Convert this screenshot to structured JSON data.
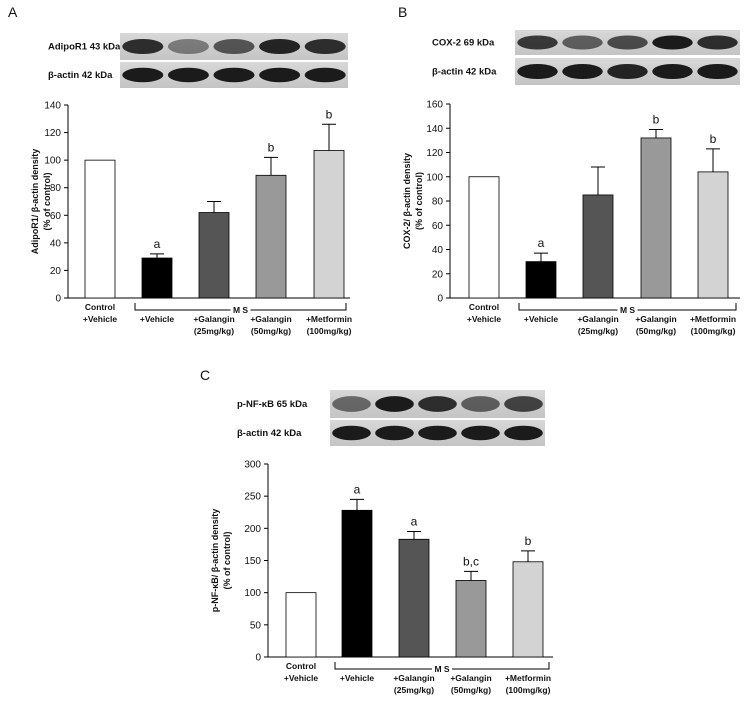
{
  "chart_data": [
    {
      "type": "bar",
      "panel": "A",
      "blots": [
        "AdipoR1 43 kDa",
        "β-actin 42 kDa"
      ],
      "ylabel": [
        "AdipoR1/ β-actin density",
        "(% of control)"
      ],
      "group_label": "M S",
      "categories": [
        [
          "Control",
          "+Vehicle"
        ],
        [
          "+Vehicle"
        ],
        [
          "+Galangin",
          "(25mg/kg)"
        ],
        [
          "+Galangin",
          "(50mg/kg)"
        ],
        [
          "+Metformin",
          "(100mg/kg)"
        ]
      ],
      "values": [
        100,
        29,
        62,
        89,
        107
      ],
      "errors": [
        null,
        3,
        8,
        13,
        19
      ],
      "letters": [
        null,
        "a",
        null,
        "b",
        "b"
      ],
      "colors": [
        "#ffffff",
        "#000000",
        "#555555",
        "#999999",
        "#d3d3d3"
      ],
      "ylim": [
        0,
        140
      ],
      "yticks": [
        0,
        20,
        40,
        60,
        80,
        100,
        120,
        140
      ]
    },
    {
      "type": "bar",
      "panel": "B",
      "blots": [
        "COX-2 69 kDa",
        "β-actin 42 kDa"
      ],
      "ylabel": [
        "COX-2/ β-actin density",
        "(% of control)"
      ],
      "group_label": "M S",
      "categories": [
        [
          "Control",
          "+Vehicle"
        ],
        [
          "+Vehicle"
        ],
        [
          "+Galangin",
          "(25mg/kg)"
        ],
        [
          "+Galangin",
          "(50mg/kg)"
        ],
        [
          "+Metformin",
          "(100mg/kg)"
        ]
      ],
      "values": [
        100,
        30,
        85,
        132,
        104
      ],
      "errors": [
        null,
        7,
        23,
        7,
        19
      ],
      "letters": [
        null,
        "a",
        null,
        "b",
        "b"
      ],
      "colors": [
        "#ffffff",
        "#000000",
        "#555555",
        "#999999",
        "#d3d3d3"
      ],
      "ylim": [
        0,
        160
      ],
      "yticks": [
        0,
        20,
        40,
        60,
        80,
        100,
        120,
        140,
        160
      ]
    },
    {
      "type": "bar",
      "panel": "C",
      "blots": [
        "p-NF-κB 65 kDa",
        "β-actin 42 kDa"
      ],
      "ylabel": [
        "p-NF-κB/ β-actin density",
        "(% of control)"
      ],
      "group_label": "M S",
      "categories": [
        [
          "Control",
          "+Vehicle"
        ],
        [
          "+Vehicle"
        ],
        [
          "+Galangin",
          "(25mg/kg)"
        ],
        [
          "+Galangin",
          "(50mg/kg)"
        ],
        [
          "+Metformin",
          "(100mg/kg)"
        ]
      ],
      "values": [
        100,
        228,
        183,
        119,
        148
      ],
      "errors": [
        null,
        17,
        12,
        14,
        17
      ],
      "letters": [
        null,
        "a",
        "a",
        "b,c",
        "b"
      ],
      "colors": [
        "#ffffff",
        "#000000",
        "#555555",
        "#999999",
        "#d3d3d3"
      ],
      "ylim": [
        0,
        300
      ],
      "yticks": [
        0,
        50,
        100,
        150,
        200,
        250,
        300
      ]
    }
  ]
}
